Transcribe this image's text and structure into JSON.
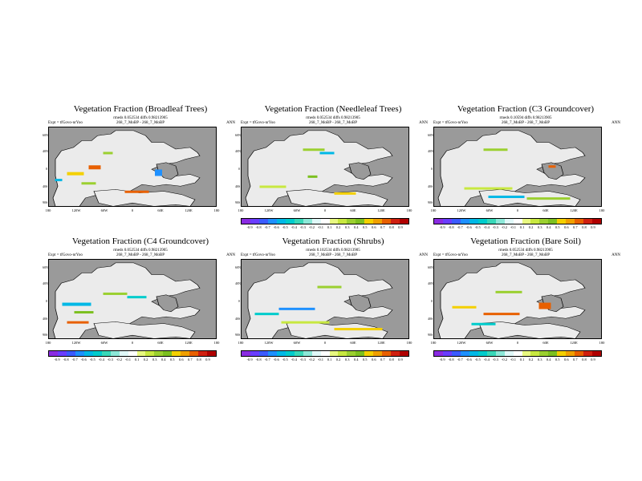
{
  "colorbar": {
    "labels": [
      "-0.9",
      "-0.8",
      "-0.7",
      "-0.6",
      "-0.5",
      "-0.4",
      "-0.3",
      "-0.2",
      "-0.1",
      "0.1",
      "0.2",
      "0.3",
      "0.4",
      "0.5",
      "0.6",
      "0.7",
      "0.8",
      "0.9"
    ],
    "colors": [
      "#8a2be2",
      "#6a3dff",
      "#3b5bff",
      "#1e90ff",
      "#00b8e6",
      "#00cccc",
      "#38d8b8",
      "#8de8d8",
      "#e0f8f8",
      "#ffffff",
      "#e8f880",
      "#c8e840",
      "#9bd030",
      "#7cc020",
      "#f4d000",
      "#f0a000",
      "#e86000",
      "#d02010",
      "#b00000"
    ]
  },
  "lon_ticks": [
    "180",
    "120W",
    "60W",
    "0",
    "60E",
    "120E",
    "180"
  ],
  "lat_ticks": [
    "60N",
    "40N",
    "0",
    "40S",
    "90S"
  ],
  "common": {
    "expt_label": "Expt = tfGovo-nrYoo",
    "mid_label": "268_7_MoBP - 268_7_MoBP",
    "season": "ANN"
  },
  "panels": [
    {
      "title": "Vegetation Fraction (Broadleaf Trees)",
      "meta": "rmeds 0.052534 diffs 0.98213905",
      "cbar_shown": false
    },
    {
      "title": "Vegetation Fraction (Needleleaf Trees)",
      "meta": "rmeds 0.052534 diffs 0.98213905",
      "cbar_shown": true
    },
    {
      "title": "Vegetation Fraction (C3 Groundcover)",
      "meta": "rmeds 0.10594 diffs 0.98213905",
      "cbar_shown": true
    },
    {
      "title": "Vegetation Fraction (C4 Groundcover)",
      "meta": "rmeds 0.052534 diffs 0.98213905",
      "cbar_shown": true
    },
    {
      "title": "Vegetation Fraction (Shrubs)",
      "meta": "rmeds 0.102534 diffs 0.98213905",
      "cbar_shown": true
    },
    {
      "title": "Vegetation Fraction (Bare Soil)",
      "meta": "rmeds 0.052534 diffs 0.98213905",
      "cbar_shown": true
    }
  ],
  "colors": {
    "ocean": "#9a9a9a",
    "land": "#ebebeb"
  }
}
